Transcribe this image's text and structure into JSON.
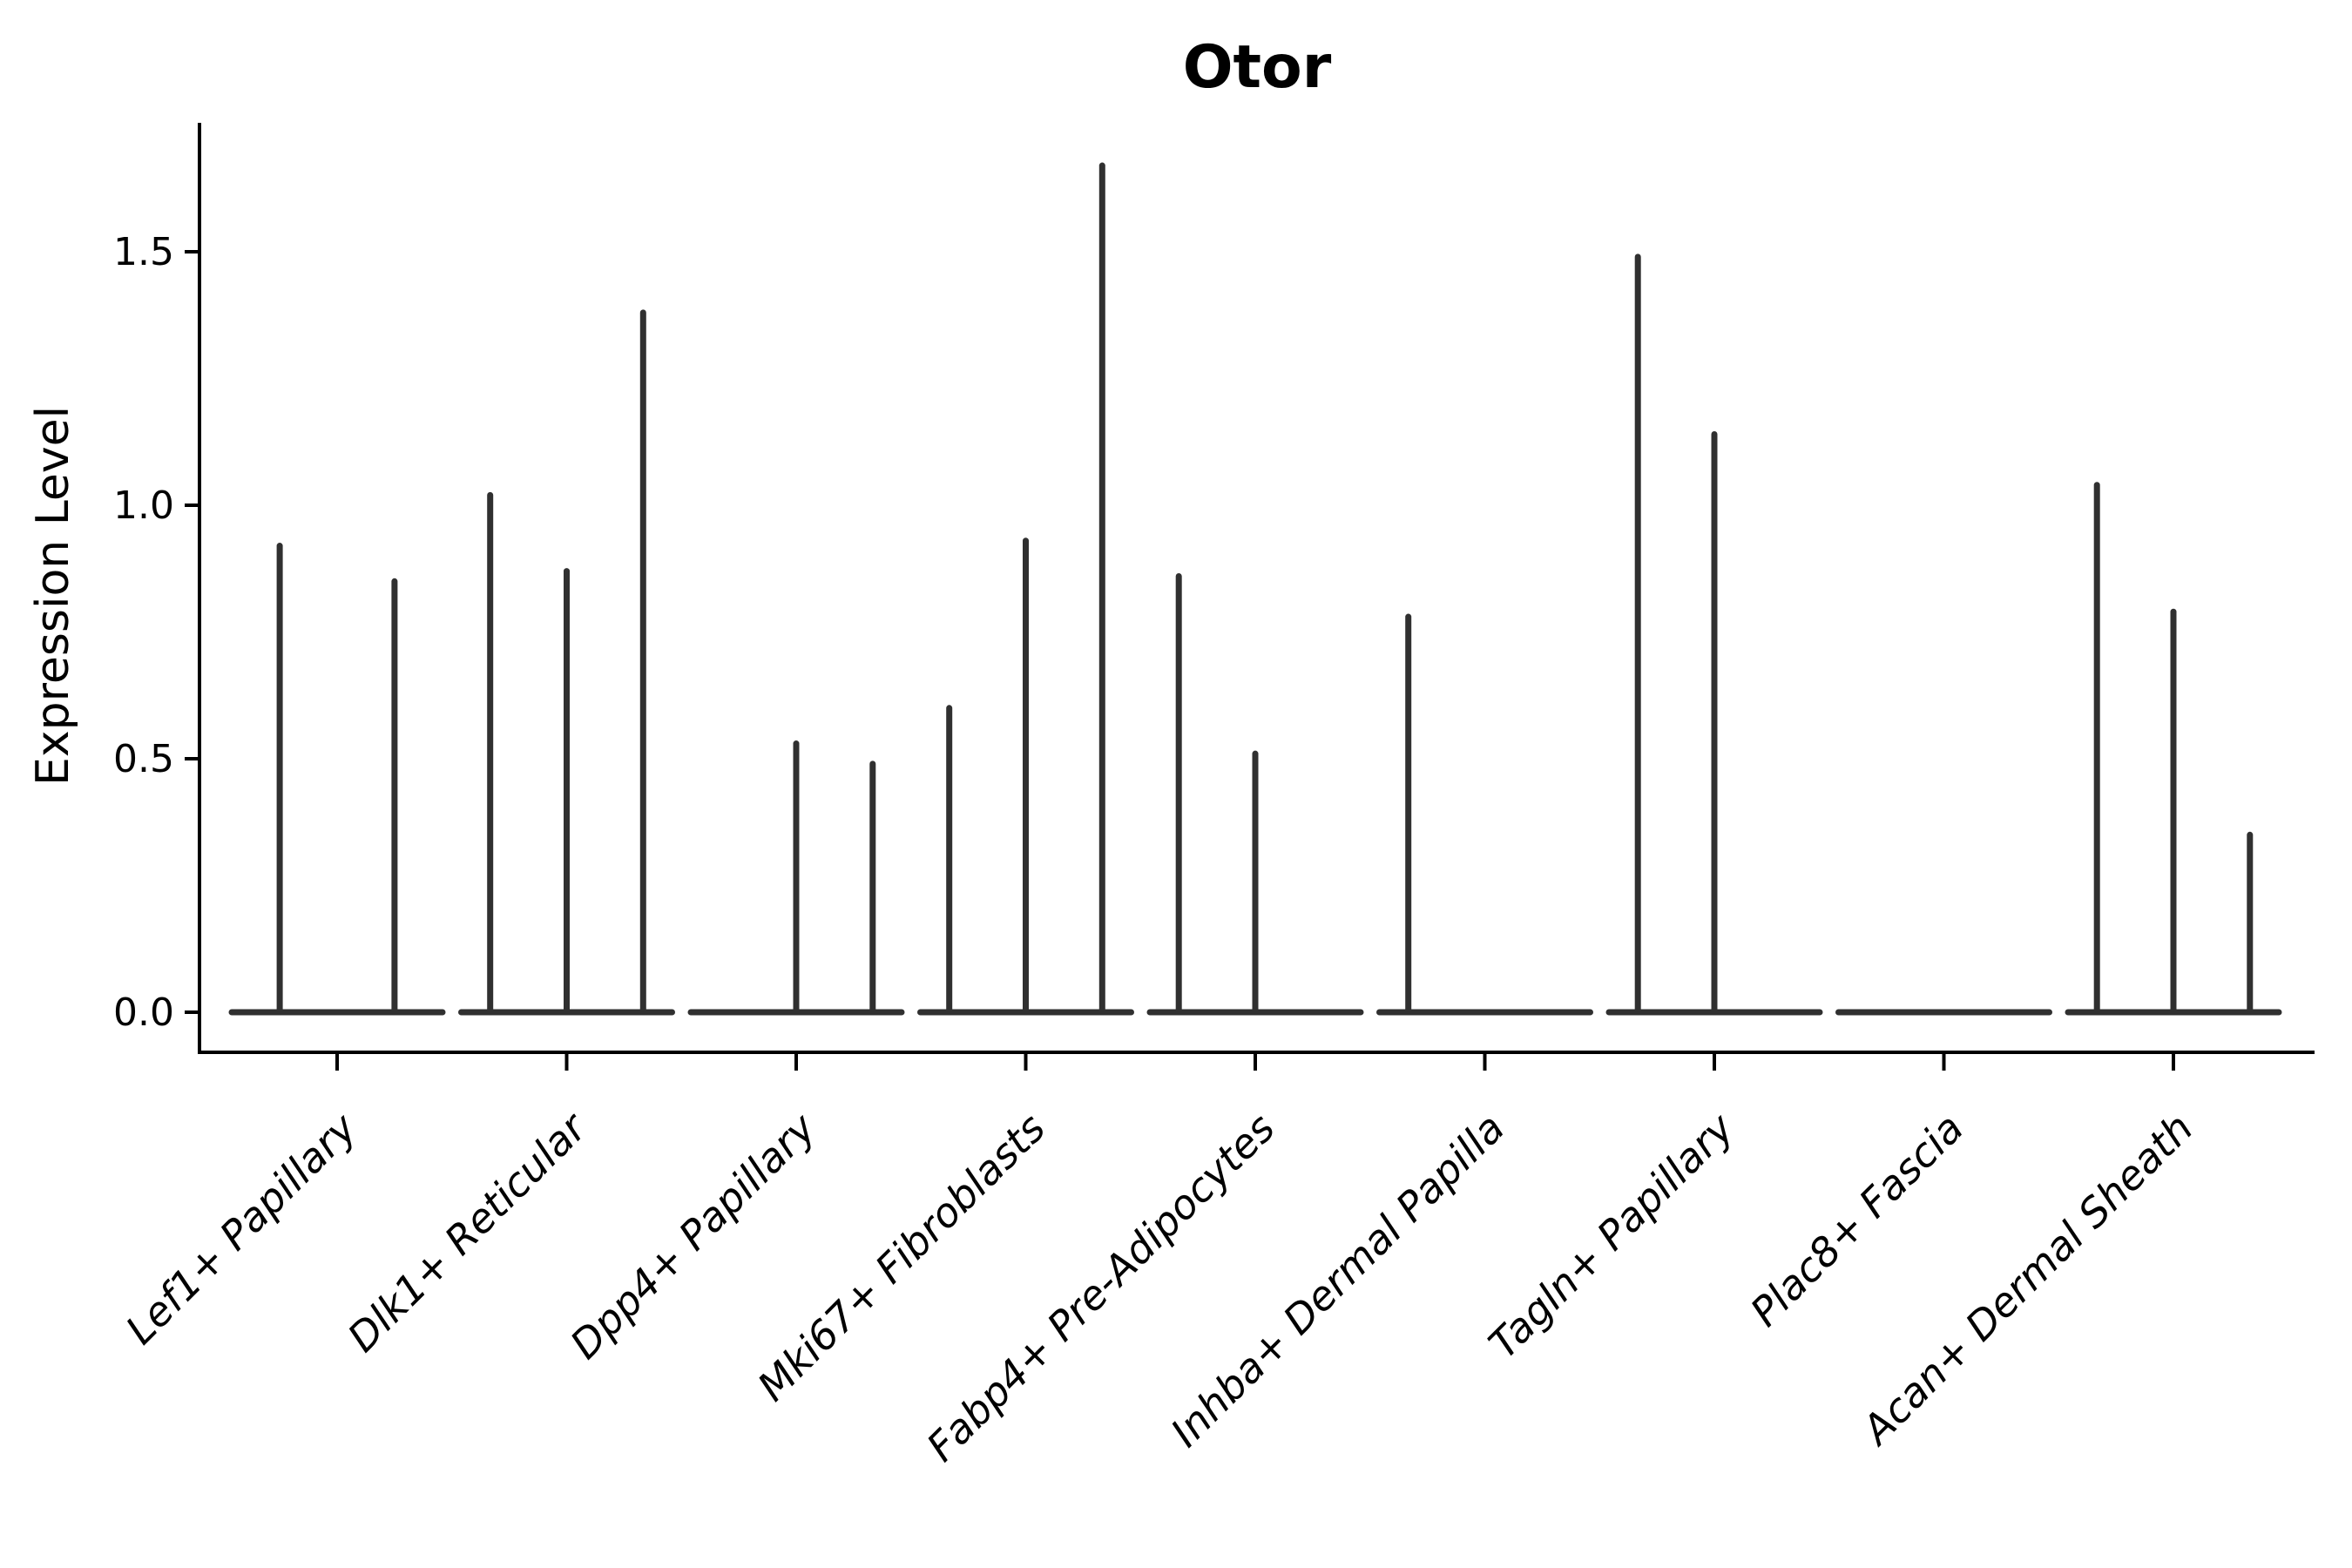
{
  "chart_data": {
    "type": "violin",
    "title": "Otor",
    "ylabel": "Expression Level",
    "ylim": [
      -0.08,
      1.75
    ],
    "yticks": [
      0.0,
      0.5,
      1.0,
      1.5
    ],
    "grid": false,
    "legend": "none",
    "categories": [
      "Lef1+ Papillary",
      "Dlk1+ Reticular",
      "Dpp4+ Papillary",
      "Mki67+ Fibroblasts",
      "Fabp4+ Pre-Adipocytes",
      "Inhba+ Dermal Papilla",
      "Tagln+ Papillary",
      "Plac8+ Fascia",
      "Acan+ Dermal Sheath"
    ],
    "groups": [
      {
        "label": "Lef1+ Papillary",
        "violin_maxima": [
          0.92,
          0.85
        ]
      },
      {
        "label": "Dlk1+ Reticular",
        "violin_maxima": [
          1.02,
          0.87,
          1.38
        ]
      },
      {
        "label": "Dpp4+ Papillary",
        "violin_maxima": [
          0,
          0.53,
          0.49
        ]
      },
      {
        "label": "Mki67+ Fibroblasts",
        "violin_maxima": [
          0.6,
          0.93,
          1.67
        ]
      },
      {
        "label": "Fabp4+ Pre-Adipocytes",
        "violin_maxima": [
          0.86,
          0.51,
          0
        ]
      },
      {
        "label": "Inhba+ Dermal Papilla",
        "violin_maxima": [
          0.78,
          0,
          0
        ]
      },
      {
        "label": "Tagln+ Papillary",
        "violin_maxima": [
          1.49,
          1.14,
          0
        ]
      },
      {
        "label": "Plac8+ Fascia",
        "violin_maxima": [
          0,
          0,
          0
        ]
      },
      {
        "label": "Acan+ Dermal Sheath",
        "violin_maxima": [
          1.04,
          0.79,
          0.35
        ]
      }
    ],
    "colors": {
      "violin_line": "#303030",
      "spine": "#000000",
      "text": "#000000",
      "background": "#ffffff"
    }
  }
}
